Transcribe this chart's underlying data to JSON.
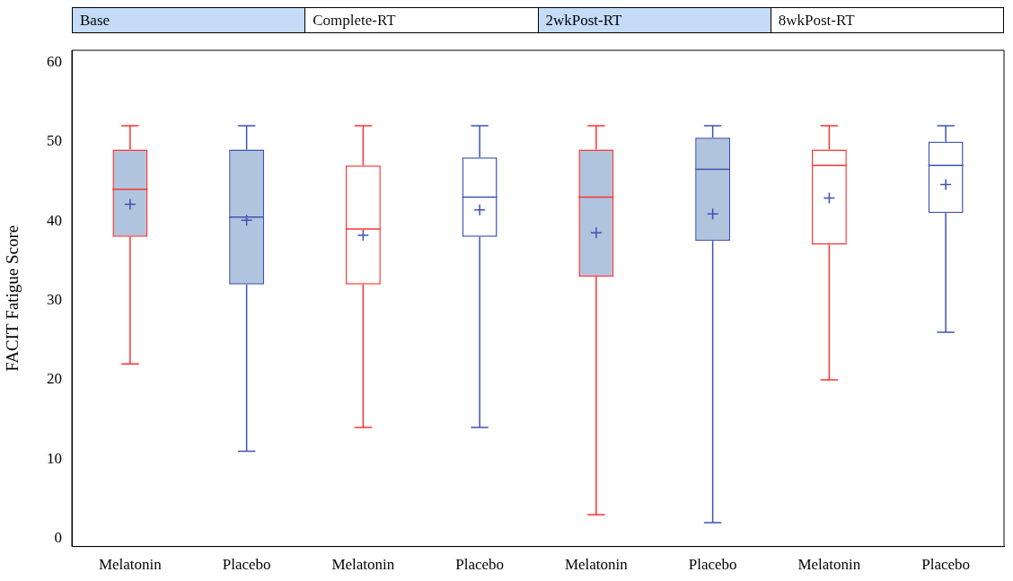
{
  "chart_data": {
    "type": "box",
    "ylabel": "FACIT Fatigue Score",
    "categories": [
      "Melatonin",
      "Placebo",
      "Melatonin",
      "Placebo",
      "Melatonin",
      "Placebo",
      "Melatonin",
      "Placebo"
    ],
    "ylim": [
      -1,
      61.5
    ],
    "yticks": [
      0,
      10,
      20,
      30,
      40,
      50,
      60
    ],
    "grid": false,
    "marker": "cross",
    "annotations": [
      "Base",
      "Complete-RT",
      "2wkPost-RT",
      "8wkPost-RT"
    ],
    "series": [
      {
        "color": "#b0c4de",
        "colors": [
          "#ff3333",
          "#3f51b5",
          null,
          null,
          null,
          null,
          null,
          null
        ],
        "boxes": [
          {
            "low": 22,
            "q1": 38,
            "median": 44,
            "q3": 49,
            "high": 52,
            "mean": 42.1
          },
          {
            "low": 11,
            "q1": 32,
            "median": 40.5,
            "q3": 49,
            "high": 52,
            "mean": 40.1
          },
          null,
          null,
          null,
          null,
          null,
          null
        ]
      },
      {
        "color": "#ffffff",
        "colors": [
          null,
          null,
          "#ff3333",
          "#3f51b5",
          null,
          null,
          null,
          null
        ],
        "boxes": [
          null,
          null,
          {
            "low": 14,
            "q1": 32,
            "median": 39,
            "q3": 47,
            "high": 52,
            "mean": 38.2
          },
          {
            "low": 14,
            "q1": 38,
            "median": 43,
            "q3": 48,
            "high": 52,
            "mean": 41.4
          },
          null,
          null,
          null,
          null
        ]
      },
      {
        "color": "#b0c4de",
        "colors": [
          null,
          null,
          null,
          null,
          "#ff3333",
          "#3f51b5",
          null,
          null
        ],
        "boxes": [
          null,
          null,
          null,
          null,
          {
            "low": 3,
            "q1": 33,
            "median": 43,
            "q3": 49,
            "high": 52,
            "mean": 38.5
          },
          {
            "low": 2,
            "q1": 37.5,
            "median": 46.5,
            "q3": 50.5,
            "high": 52,
            "mean": 40.9
          },
          null,
          null
        ]
      },
      {
        "color": "#ffffff",
        "colors": [
          null,
          null,
          null,
          null,
          null,
          null,
          "#ff3333",
          "#3f51b5"
        ],
        "boxes": [
          null,
          null,
          null,
          null,
          null,
          null,
          {
            "low": 20,
            "q1": 37,
            "median": 47,
            "q3": 49,
            "high": 52,
            "mean": 42.9
          },
          {
            "low": 26,
            "q1": 41,
            "median": 47,
            "q3": 50,
            "high": 52,
            "mean": 44.6
          }
        ]
      }
    ]
  }
}
